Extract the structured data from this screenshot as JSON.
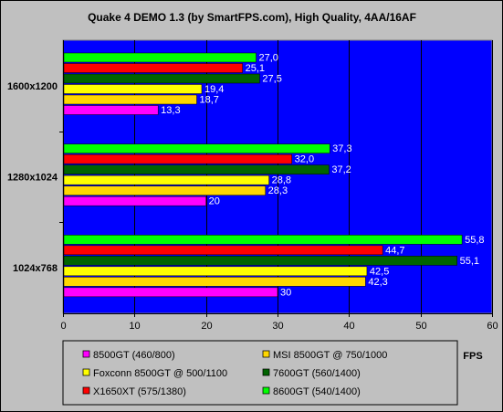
{
  "chart_data": {
    "type": "bar",
    "orientation": "horizontal",
    "title": "Quake 4 DEMO 1.3 (by SmartFPS.com), High Quality, 4AA/16AF",
    "xlabel": "FPS",
    "ylabel": "",
    "xlim": [
      0,
      60
    ],
    "xticks": [
      "0",
      "10",
      "20",
      "30",
      "40",
      "50",
      "60"
    ],
    "grid": true,
    "legend_position": "bottom",
    "plot_background": "#0000ff",
    "categories": [
      "1600x1200",
      "1280x1024",
      "1024x768"
    ],
    "series": [
      {
        "name": "8600GT (540/1400)",
        "color": "#00ff00",
        "values": [
          27.0,
          37.3,
          55.8
        ],
        "labels": [
          "27,0",
          "37,3",
          "55,8"
        ]
      },
      {
        "name": "X1650XT (575/1380)",
        "color": "#ff0000",
        "values": [
          25.1,
          32.0,
          44.7
        ],
        "labels": [
          "25,1",
          "32,0",
          "44,7"
        ]
      },
      {
        "name": "7600GT (560/1400)",
        "color": "#006400",
        "values": [
          27.5,
          37.2,
          55.1
        ],
        "labels": [
          "27,5",
          "37,2",
          "55,1"
        ]
      },
      {
        "name": "Foxconn 8500GT @ 500/1100",
        "color": "#ffff00",
        "values": [
          19.4,
          28.8,
          42.5
        ],
        "labels": [
          "19,4",
          "28,8",
          "42,5"
        ]
      },
      {
        "name": "MSI 8500GT @ 750/1000",
        "color": "#ffd700",
        "values": [
          18.7,
          28.3,
          42.3
        ],
        "labels": [
          "18,7",
          "28,3",
          "42,3"
        ]
      },
      {
        "name": "8500GT (460/800)",
        "color": "#ff00ff",
        "values": [
          13.3,
          20,
          30
        ],
        "labels": [
          "13,3",
          "20",
          "30"
        ]
      }
    ],
    "legend_order": [
      "8500GT (460/800)",
      "MSI 8500GT @ 750/1000",
      "Foxconn 8500GT @ 500/1100",
      "7600GT (560/1400)",
      "X1650XT (575/1380)",
      "8600GT (540/1400)"
    ]
  }
}
